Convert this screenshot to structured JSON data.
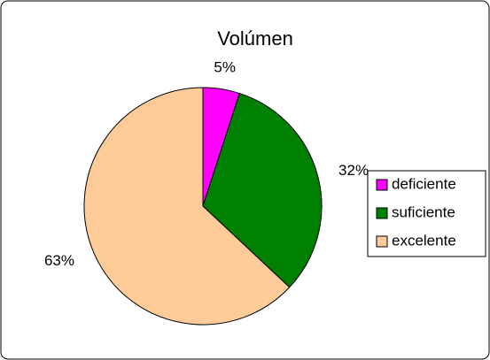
{
  "chart_data": {
    "type": "pie",
    "title": "Volúmen",
    "categories": [
      "deficiente",
      "suficiente",
      "excelente"
    ],
    "values": [
      5,
      32,
      63
    ],
    "value_labels": [
      "5%",
      "32%",
      "63%"
    ],
    "colors": [
      "#ff00ff",
      "#008000",
      "#ffcc99"
    ],
    "legend": "right"
  }
}
